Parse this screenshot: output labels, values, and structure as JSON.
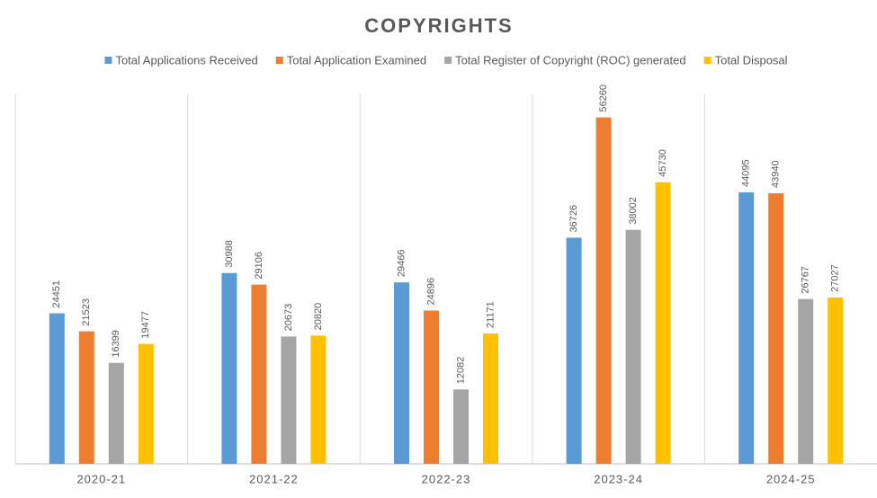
{
  "chart_data": {
    "type": "bar",
    "title": "COPYRIGHTS",
    "categories": [
      "2020-21",
      "2021-22",
      "2022-23",
      "2023-24",
      "2024-25"
    ],
    "series": [
      {
        "name": "Total Applications Received",
        "color": "#5b9bd5",
        "values": [
          24451,
          30988,
          29466,
          36726,
          44095
        ]
      },
      {
        "name": "Total Application Examined",
        "color": "#ed7d31",
        "values": [
          21523,
          29106,
          24896,
          56260,
          43940
        ]
      },
      {
        "name": "Total Register of Copyright (ROC) generated",
        "color": "#a5a5a5",
        "values": [
          16399,
          20673,
          12082,
          38002,
          26767
        ]
      },
      {
        "name": "Total Disposal",
        "color": "#ffc000",
        "values": [
          19477,
          20820,
          21171,
          45730,
          27027
        ]
      }
    ],
    "ylim": [
      0,
      60000
    ],
    "legend": "top"
  }
}
